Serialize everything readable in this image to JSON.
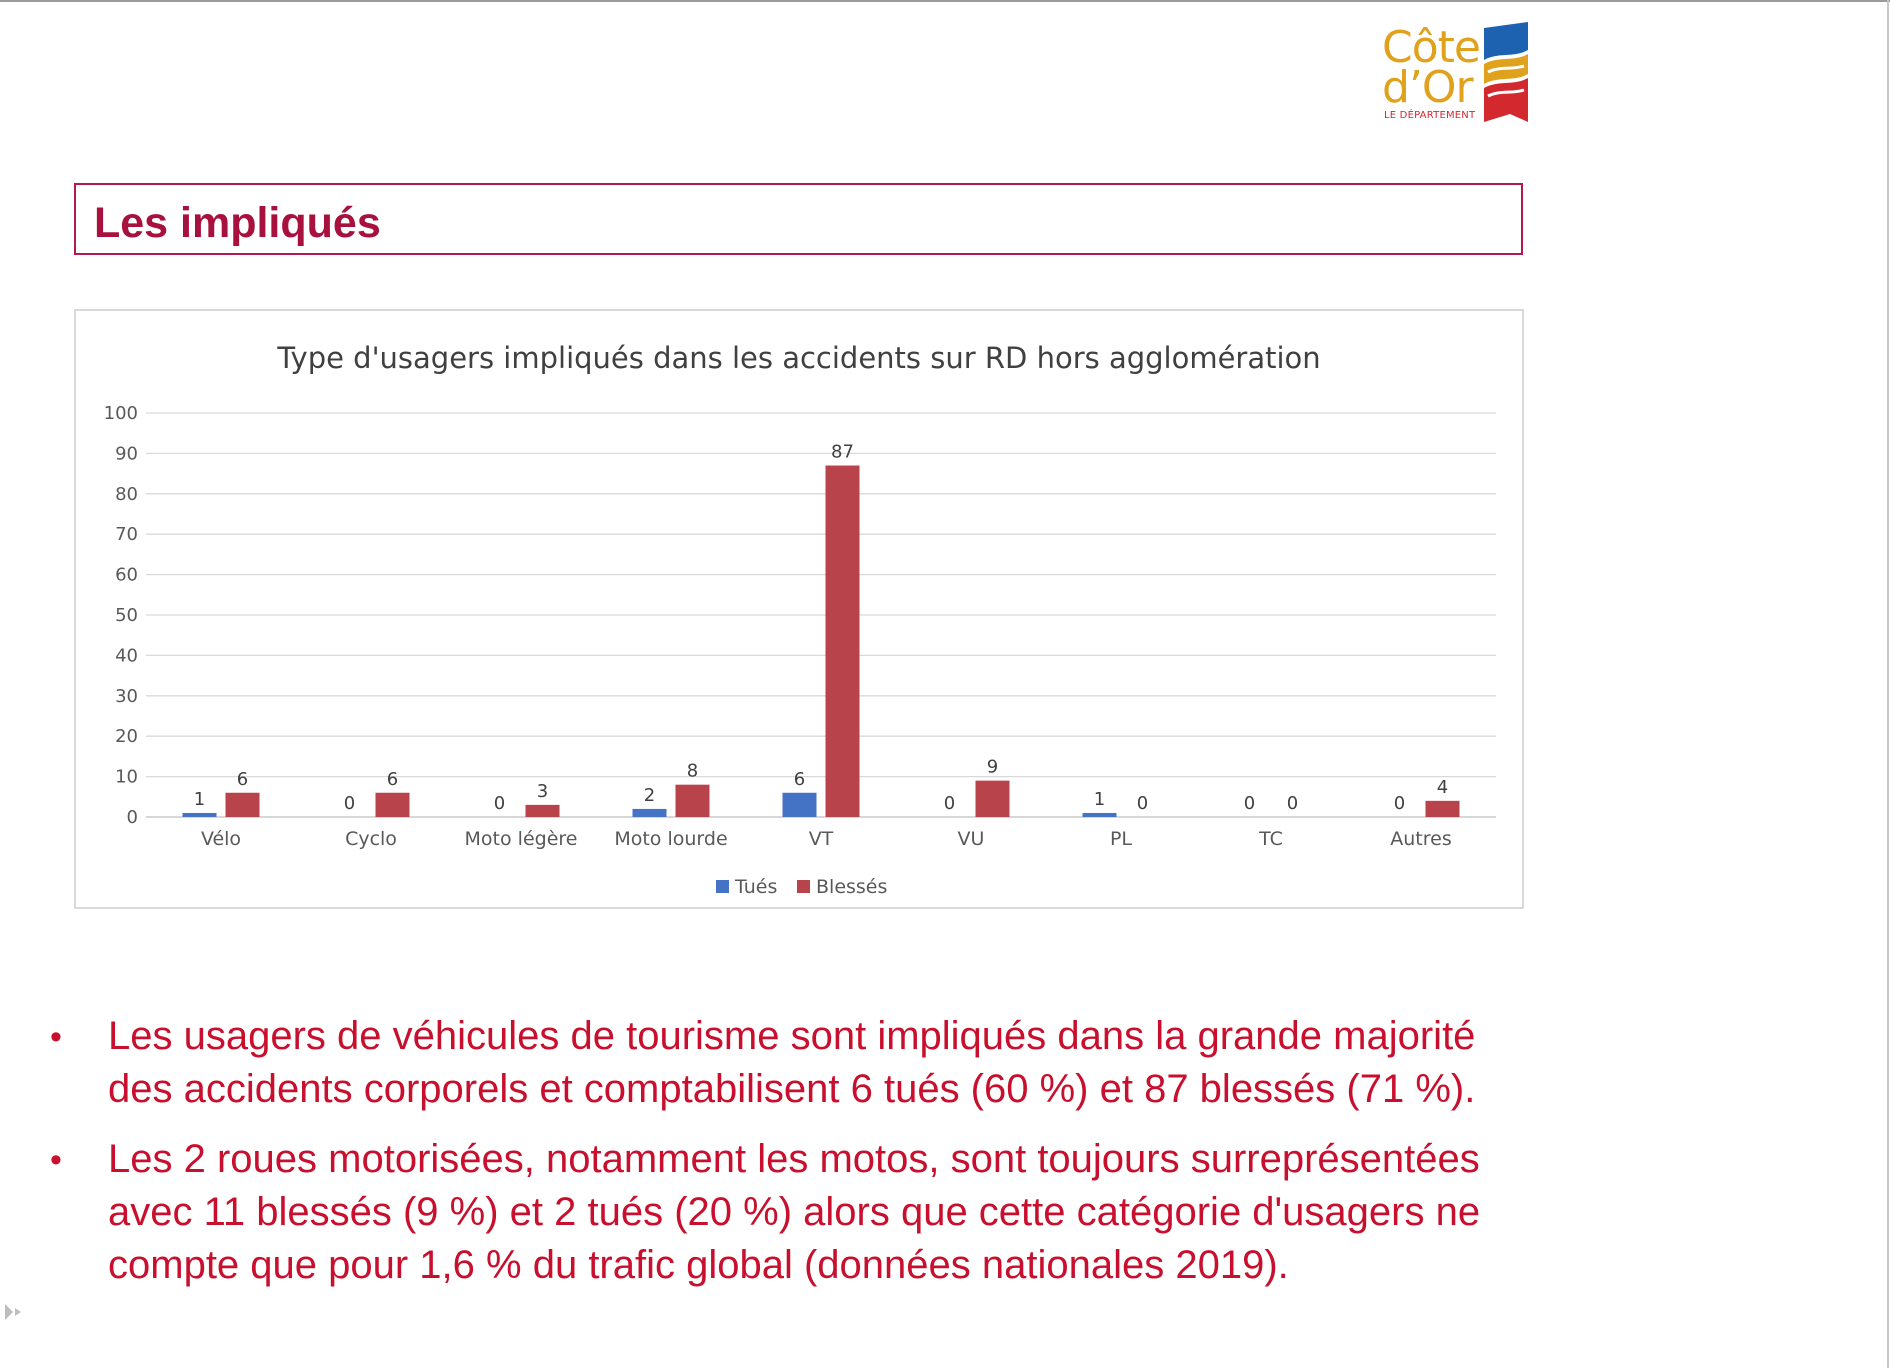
{
  "logo": {
    "line1": "Côte",
    "line2": "d’Or",
    "subtitle": "LE DÉPARTEMENT",
    "colors": {
      "gold": "#e0a11c",
      "blue": "#1d62b0",
      "red": "#d2282e"
    }
  },
  "section_title": "Les impliqués",
  "chart_data": {
    "type": "bar",
    "title": "Type d'usagers impliqués dans les accidents sur RD hors agglomération",
    "categories": [
      "Vélo",
      "Cyclo",
      "Moto légère",
      "Moto lourde",
      "VT",
      "VU",
      "PL",
      "TC",
      "Autres"
    ],
    "series": [
      {
        "name": "Tués",
        "color": "#4472c4",
        "values": [
          1,
          0,
          0,
          2,
          6,
          0,
          1,
          0,
          0
        ]
      },
      {
        "name": "Blessés",
        "color": "#b9434a",
        "values": [
          6,
          6,
          3,
          8,
          87,
          9,
          0,
          0,
          4
        ]
      }
    ],
    "ylim": [
      0,
      100
    ],
    "yticks": [
      0,
      10,
      20,
      30,
      40,
      50,
      60,
      70,
      80,
      90,
      100
    ],
    "grid": true,
    "data_labels": true,
    "legend_position": "bottom",
    "xlabel": "",
    "ylabel": ""
  },
  "bullets": [
    {
      "line1": "Les usagers de véhicules de tourisme sont impliqués dans la grande majorité",
      "line2": "des accidents corporels et comptabilisent 6 tués (60 %) et 87 blessés (71 %)."
    },
    {
      "line1": "Les 2 roues motorisées, notamment les motos, sont toujours surreprésentées",
      "line2": "avec 11 blessés (9 %) et 2 tués (20 %) alors que cette catégorie d'usagers ne",
      "line3": "compte que pour 1,6 % du trafic global (données nationales 2019)."
    }
  ],
  "bullet_symbol": "•",
  "icons": {
    "presenter": "play-triangle-icon"
  }
}
